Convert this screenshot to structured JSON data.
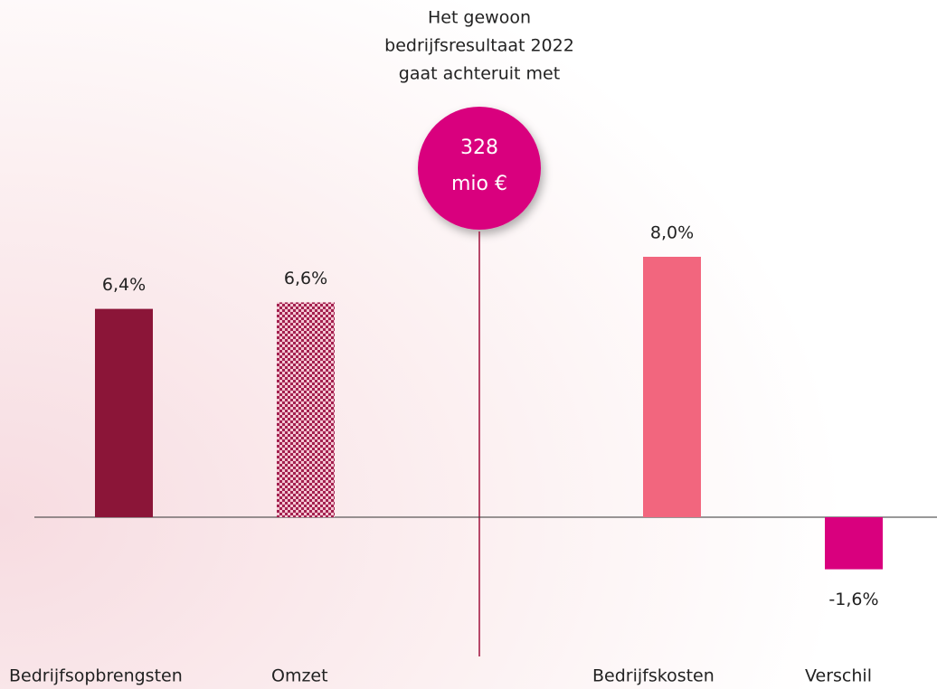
{
  "chart_data": {
    "type": "bar",
    "title": [
      "Het gewoon",
      "bedrijfsresultaat 2022",
      "gaat achteruit met"
    ],
    "bubble": [
      "328",
      "mio €"
    ],
    "categories": [
      "Bedrijfsopbrengsten",
      "Omzet",
      "Bedrijfskosten",
      "Verschil"
    ],
    "values": [
      6.4,
      6.6,
      8.0,
      -1.6
    ],
    "value_labels": [
      "6,4%",
      "6,6%",
      "8,0%",
      "-1,6%"
    ],
    "colors": [
      "#8b1538",
      "#a3204f",
      "#f2667e",
      "#d9007e"
    ],
    "patterns": [
      null,
      "dots",
      null,
      null
    ]
  }
}
